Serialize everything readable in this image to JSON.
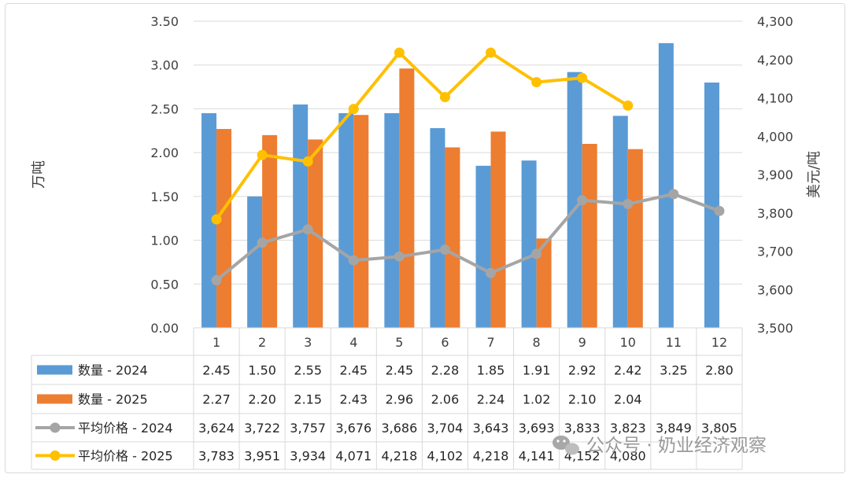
{
  "chart_data": {
    "type": "bar+line",
    "categories": [
      "1",
      "2",
      "3",
      "4",
      "5",
      "6",
      "7",
      "8",
      "9",
      "10",
      "11",
      "12"
    ],
    "y_left_label": "万吨",
    "y_right_label": "美元/吨",
    "y_left_ticks": [
      "0.00",
      "0.50",
      "1.00",
      "1.50",
      "2.00",
      "2.50",
      "3.00",
      "3.50"
    ],
    "y_right_ticks": [
      "3,500",
      "3,600",
      "3,700",
      "3,800",
      "3,900",
      "4,000",
      "4,100",
      "4,200",
      "4,300"
    ],
    "ylim_left": [
      0,
      3.5
    ],
    "ylim_right": [
      3500,
      4300
    ],
    "series": [
      {
        "name": "数量 - 2024",
        "kind": "bar",
        "axis": "left",
        "color": "#5b9bd5",
        "values": [
          2.45,
          1.5,
          2.55,
          2.45,
          2.45,
          2.28,
          1.85,
          1.91,
          2.92,
          2.42,
          3.25,
          2.8
        ],
        "labels": [
          "2.45",
          "1.50",
          "2.55",
          "2.45",
          "2.45",
          "2.28",
          "1.85",
          "1.91",
          "2.92",
          "2.42",
          "3.25",
          "2.80"
        ]
      },
      {
        "name": "数量 - 2025",
        "kind": "bar",
        "axis": "left",
        "color": "#ed7d31",
        "values": [
          2.27,
          2.2,
          2.15,
          2.43,
          2.96,
          2.06,
          2.24,
          1.02,
          2.1,
          2.04,
          null,
          null
        ],
        "labels": [
          "2.27",
          "2.20",
          "2.15",
          "2.43",
          "2.96",
          "2.06",
          "2.24",
          "1.02",
          "2.10",
          "2.04",
          "",
          ""
        ]
      },
      {
        "name": "平均价格 - 2024",
        "kind": "line",
        "axis": "right",
        "color": "#a5a5a5",
        "values": [
          3624,
          3722,
          3757,
          3676,
          3686,
          3704,
          3643,
          3693,
          3833,
          3823,
          3849,
          3805
        ],
        "labels": [
          "3,624",
          "3,722",
          "3,757",
          "3,676",
          "3,686",
          "3,704",
          "3,643",
          "3,693",
          "3,833",
          "3,823",
          "3,849",
          "3,805"
        ]
      },
      {
        "name": "平均价格 - 2025",
        "kind": "line",
        "axis": "right",
        "color": "#ffc000",
        "values": [
          3783,
          3951,
          3934,
          4071,
          4218,
          4102,
          4218,
          4141,
          4152,
          4080,
          null,
          null
        ],
        "labels": [
          "3,783",
          "3,951",
          "3,934",
          "4,071",
          "4,218",
          "4,102",
          "4,218",
          "4,141",
          "4,152",
          "4,080",
          "",
          ""
        ]
      }
    ],
    "grid": "horizontal",
    "legend": "data-table"
  },
  "watermark": {
    "text": "公众号 · 奶业经济观察",
    "icon": "wechat-icon"
  }
}
